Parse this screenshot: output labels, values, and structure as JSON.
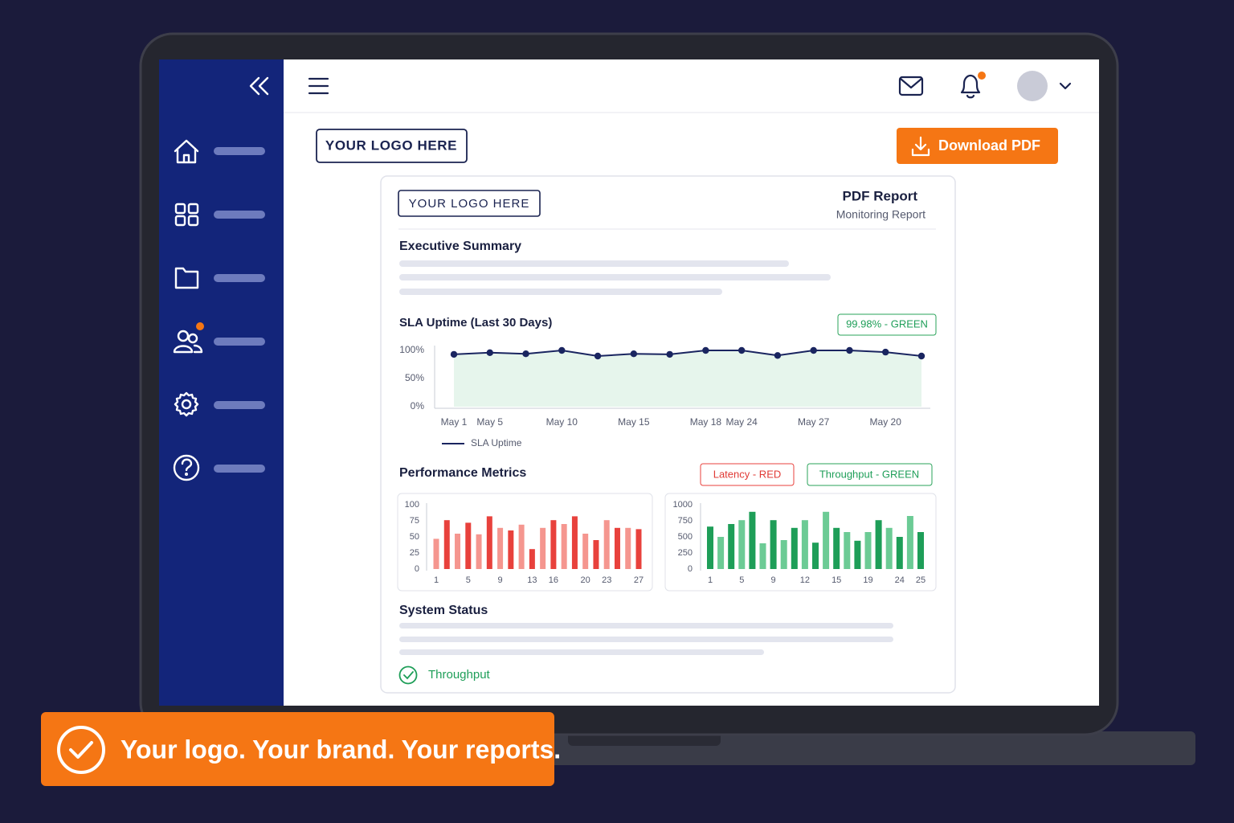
{
  "header": {},
  "logo_button": "YOUR LOGO HERE",
  "download_button": "Download PDF",
  "report": {
    "logo": "YOUR LOGO HERE",
    "title": "PDF Report",
    "subtitle": "Monitoring Report",
    "executive_summary": "Executive Summary",
    "performance_metrics": "Performance Metrics",
    "system_status": "System Status",
    "status_item": "Throughput"
  },
  "chart_data": [
    {
      "type": "line",
      "title": "SLA Uptime (Last 30 Days)",
      "badge": "99.98% - GREEN",
      "categories": [
        "May 1",
        "May 5",
        null,
        "May 10",
        null,
        "May 15",
        null,
        "May 18",
        "May 24",
        null,
        "May 27",
        null,
        "May 20",
        null
      ],
      "series": [
        {
          "name": "SLA Uptime",
          "color": "#1a2560",
          "values": [
            93,
            96,
            94,
            100,
            90,
            94,
            93,
            100,
            100,
            91,
            100,
            100,
            97,
            90
          ]
        }
      ],
      "area_color": "#e6f5ec",
      "ylim": [
        0,
        100
      ],
      "yticks": [
        {
          "value": 100,
          "label": "100%"
        },
        {
          "value": 50,
          "label": "50%"
        },
        {
          "value": 0,
          "label": "0%"
        }
      ]
    },
    {
      "type": "bar",
      "badge": "Latency - RED",
      "categories": [
        "1",
        null,
        null,
        "5",
        null,
        null,
        "9",
        null,
        null,
        "13",
        null,
        "16",
        null,
        null,
        "20",
        null,
        "23",
        null,
        null,
        "27"
      ],
      "values": [
        47,
        76,
        55,
        72,
        54,
        82,
        64,
        60,
        69,
        31,
        64,
        76,
        70,
        82,
        55,
        45,
        76,
        64,
        64,
        62
      ],
      "colors": [
        "#f5968f",
        "#e8413c"
      ],
      "ylim": [
        0,
        100
      ],
      "yticks": [
        100,
        75,
        50,
        25,
        0
      ]
    },
    {
      "type": "bar",
      "badge": "Throughput - GREEN",
      "categories": [
        "1",
        null,
        null,
        "5",
        null,
        null,
        "9",
        null,
        null,
        "12",
        null,
        null,
        "15",
        null,
        null,
        "19",
        null,
        null,
        "24",
        null,
        "25"
      ],
      "values": [
        660,
        500,
        700,
        760,
        890,
        400,
        760,
        450,
        640,
        760,
        410,
        890,
        640,
        575,
        440,
        575,
        760,
        640,
        500,
        825,
        575
      ],
      "colors": [
        "#1e9e58",
        "#6ccb95"
      ],
      "ylim": [
        0,
        1000
      ],
      "yticks": [
        1000,
        750,
        500,
        250,
        0
      ]
    }
  ],
  "banner": "Your logo. Your brand. Your reports."
}
